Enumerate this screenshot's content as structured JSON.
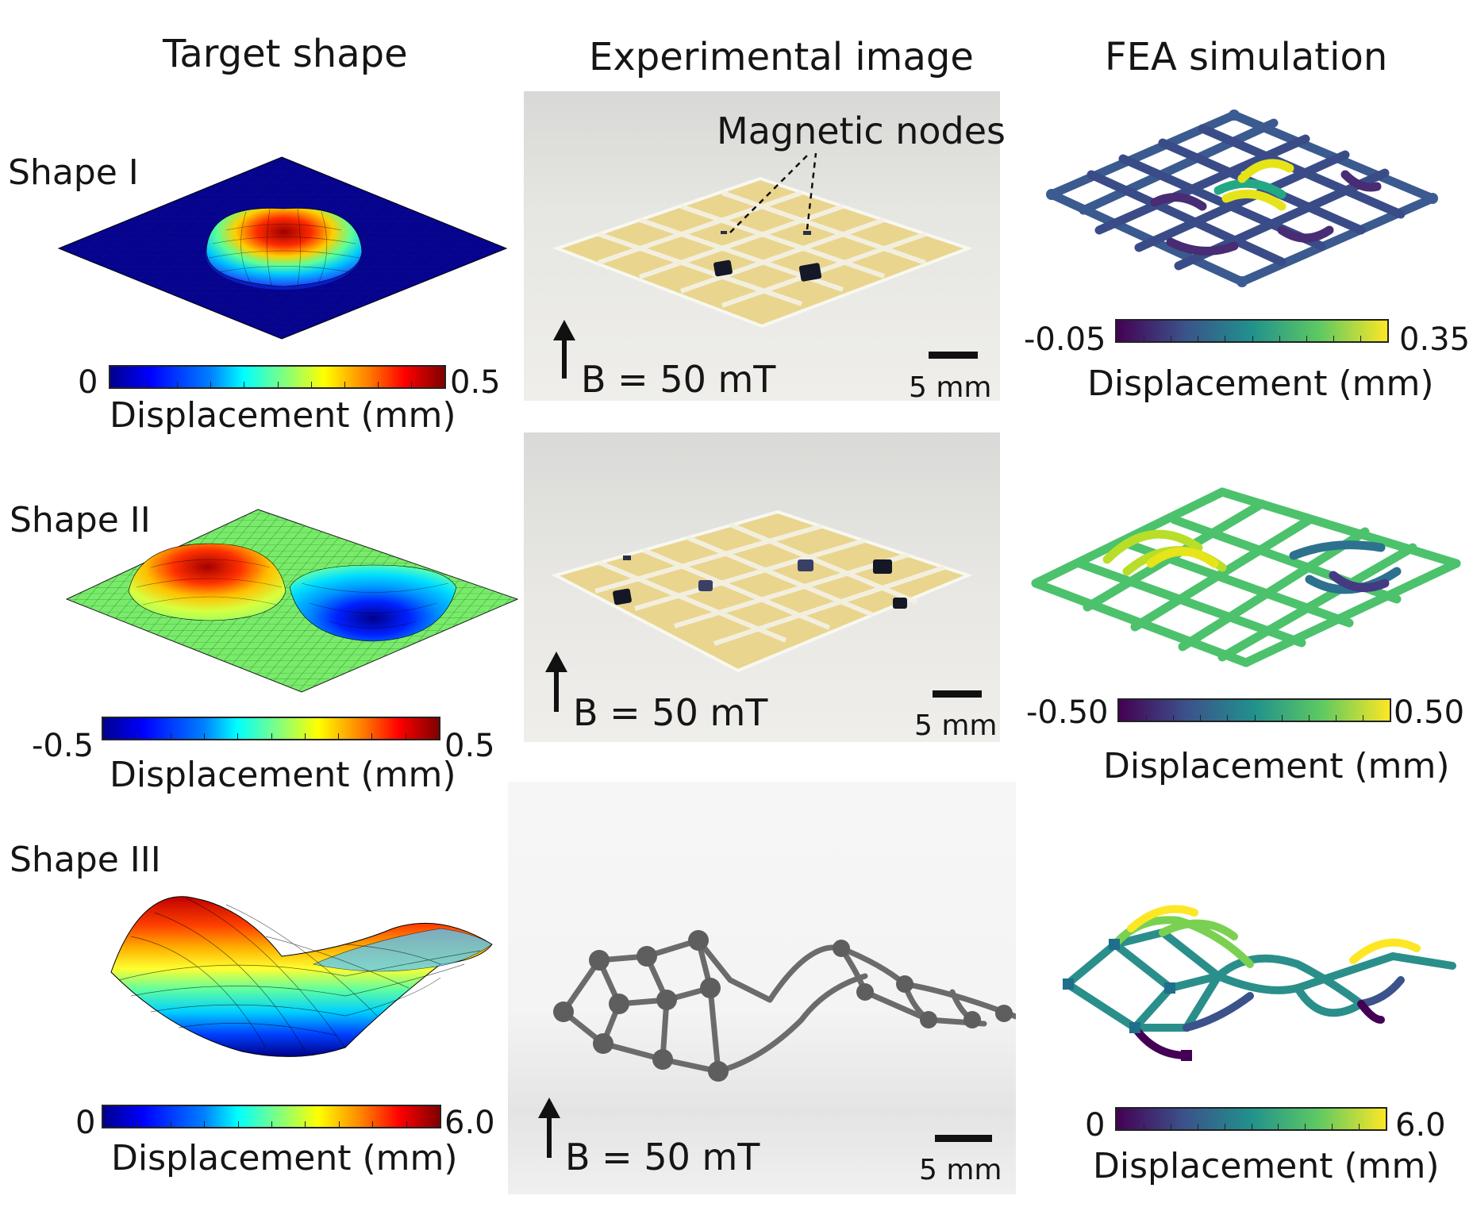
{
  "columns": {
    "target": "Target shape",
    "experimental": "Experimental image",
    "fea": "FEA simulation"
  },
  "rows": [
    {
      "label": "Shape I",
      "target_colorbar": {
        "min": "0",
        "max": "0.5",
        "label": "Displacement (mm)",
        "colormap": "jet"
      },
      "photo": {
        "field": "B = 50 mT",
        "scale": "5 mm",
        "annotation": "Magnetic nodes"
      },
      "fea_colorbar": {
        "min": "-0.05",
        "max": "0.35",
        "label": "Displacement (mm)",
        "colormap": "viridis"
      }
    },
    {
      "label": "Shape II",
      "target_colorbar": {
        "min": "-0.5",
        "max": "0.5",
        "label": "Displacement (mm)",
        "colormap": "jet"
      },
      "photo": {
        "field": "B = 50 mT",
        "scale": "5 mm"
      },
      "fea_colorbar": {
        "min": "-0.50",
        "max": "0.50",
        "label": "Displacement (mm)",
        "colormap": "viridis"
      }
    },
    {
      "label": "Shape III",
      "target_colorbar": {
        "min": "0",
        "max": "6.0",
        "label": "Displacement (mm)",
        "colormap": "jet"
      },
      "photo": {
        "field": "B = 50 mT",
        "scale": "5 mm"
      },
      "fea_colorbar": {
        "min": "0",
        "max": "6.0",
        "label": "Displacement (mm)",
        "colormap": "viridis"
      }
    }
  ]
}
